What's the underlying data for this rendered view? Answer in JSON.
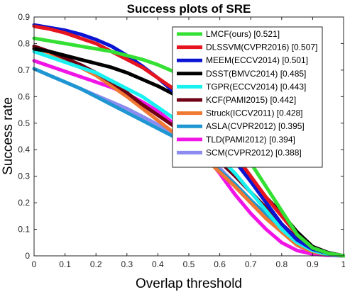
{
  "chart_data": {
    "type": "line",
    "title": "Success plots of SRE",
    "xlabel": "Overlap threshold",
    "ylabel": "Success rate",
    "xlim": [
      0,
      1
    ],
    "ylim": [
      0,
      0.9
    ],
    "x_ticks": [
      "0",
      "0.1",
      "0.2",
      "0.3",
      "0.4",
      "0.5",
      "0.6",
      "0.7",
      "0.8",
      "0.9",
      "1"
    ],
    "y_ticks": [
      "0",
      "0.1",
      "0.2",
      "0.3",
      "0.4",
      "0.5",
      "0.6",
      "0.7",
      "0.8",
      "0.9"
    ],
    "grid": false,
    "legend_position": "top-right",
    "x": [
      0,
      0.05,
      0.1,
      0.15,
      0.2,
      0.25,
      0.3,
      0.35,
      0.4,
      0.45,
      0.5,
      0.55,
      0.6,
      0.65,
      0.7,
      0.75,
      0.8,
      0.85,
      0.9,
      0.95,
      1
    ],
    "series": [
      {
        "name": "LMCF(ours) [0.521]",
        "color": "#33e033",
        "values": [
          0.82,
          0.81,
          0.8,
          0.79,
          0.78,
          0.77,
          0.755,
          0.74,
          0.72,
          0.695,
          0.66,
          0.61,
          0.54,
          0.45,
          0.35,
          0.26,
          0.17,
          0.08,
          0.03,
          0.01,
          0.0
        ]
      },
      {
        "name": "DLSSVM(CVPR2016) [0.507]",
        "color": "#e6141e",
        "values": [
          0.865,
          0.855,
          0.84,
          0.82,
          0.8,
          0.77,
          0.74,
          0.71,
          0.67,
          0.63,
          0.58,
          0.52,
          0.45,
          0.38,
          0.3,
          0.22,
          0.15,
          0.08,
          0.03,
          0.01,
          0.0
        ]
      },
      {
        "name": "MEEM(ECCV2014) [0.501]",
        "color": "#0a14d2",
        "values": [
          0.87,
          0.86,
          0.85,
          0.835,
          0.815,
          0.79,
          0.755,
          0.715,
          0.67,
          0.62,
          0.565,
          0.5,
          0.43,
          0.355,
          0.28,
          0.2,
          0.12,
          0.06,
          0.025,
          0.01,
          0.0
        ]
      },
      {
        "name": "DSST(BMVC2014) [0.485]",
        "color": "#000000",
        "values": [
          0.78,
          0.77,
          0.755,
          0.74,
          0.725,
          0.71,
          0.69,
          0.665,
          0.64,
          0.61,
          0.57,
          0.51,
          0.44,
          0.365,
          0.29,
          0.22,
          0.16,
          0.09,
          0.035,
          0.012,
          0.0
        ]
      },
      {
        "name": "TGPR(ECCV2014) [0.443]",
        "color": "#19f0f0",
        "values": [
          0.77,
          0.75,
          0.73,
          0.71,
          0.69,
          0.66,
          0.63,
          0.6,
          0.56,
          0.52,
          0.48,
          0.43,
          0.37,
          0.31,
          0.24,
          0.17,
          0.1,
          0.05,
          0.02,
          0.005,
          0.0
        ]
      },
      {
        "name": "KCF(PAMI2015) [0.442]",
        "color": "#6e0014",
        "values": [
          0.79,
          0.77,
          0.745,
          0.72,
          0.69,
          0.655,
          0.615,
          0.57,
          0.53,
          0.49,
          0.45,
          0.405,
          0.355,
          0.3,
          0.24,
          0.18,
          0.12,
          0.065,
          0.025,
          0.008,
          0.0
        ]
      },
      {
        "name": "Struck(ICCV2011) [0.428]",
        "color": "#f07832",
        "values": [
          0.785,
          0.765,
          0.74,
          0.71,
          0.68,
          0.64,
          0.6,
          0.555,
          0.51,
          0.465,
          0.42,
          0.37,
          0.315,
          0.26,
          0.2,
          0.14,
          0.09,
          0.04,
          0.015,
          0.005,
          0.0
        ]
      },
      {
        "name": "ASLA(CVPR2012) [0.395]",
        "color": "#1e96d2",
        "values": [
          0.705,
          0.68,
          0.655,
          0.63,
          0.6,
          0.57,
          0.54,
          0.51,
          0.48,
          0.45,
          0.415,
          0.37,
          0.32,
          0.27,
          0.21,
          0.155,
          0.1,
          0.05,
          0.02,
          0.005,
          0.0
        ]
      },
      {
        "name": "TLD(PAMI2012) [0.394]",
        "color": "#f014e6",
        "values": [
          0.735,
          0.715,
          0.695,
          0.675,
          0.655,
          0.635,
          0.61,
          0.58,
          0.545,
          0.5,
          0.45,
          0.385,
          0.31,
          0.23,
          0.16,
          0.1,
          0.05,
          0.02,
          0.007,
          0.002,
          0.0
        ]
      },
      {
        "name": "SCM(CVPR2012) [0.388]",
        "color": "#8c8cf0",
        "values": [
          0.705,
          0.68,
          0.655,
          0.63,
          0.605,
          0.58,
          0.555,
          0.525,
          0.495,
          0.465,
          0.43,
          0.385,
          0.33,
          0.27,
          0.21,
          0.145,
          0.09,
          0.04,
          0.012,
          0.004,
          0.0
        ]
      }
    ]
  }
}
